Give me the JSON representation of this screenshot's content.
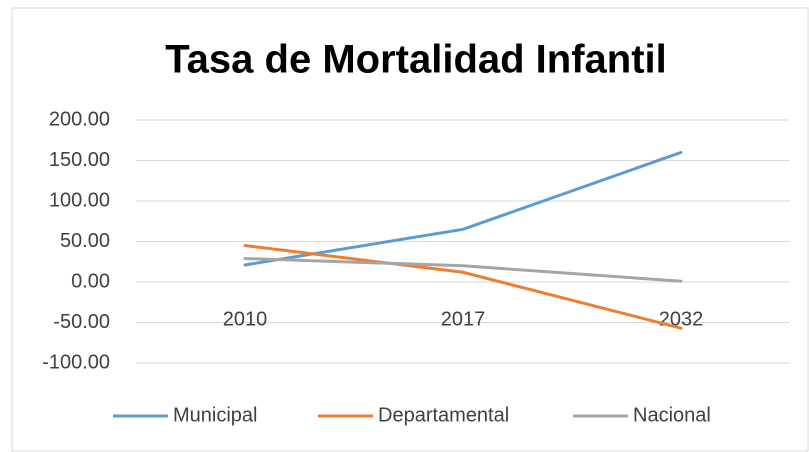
{
  "chart_data": {
    "type": "line",
    "title": "Tasa de Mortalidad Infantil",
    "categories": [
      "2010",
      "2017",
      "2032"
    ],
    "series": [
      {
        "name": "Municipal",
        "color": "#5b9bd5",
        "values": [
          21,
          65,
          160
        ]
      },
      {
        "name": "Departamental",
        "color": "#ed7d31",
        "values": [
          45,
          12,
          -57
        ]
      },
      {
        "name": "Nacional",
        "color": "#a5a5a5",
        "values": [
          29,
          20,
          1
        ]
      }
    ],
    "ylim": [
      -100,
      200
    ],
    "yticks": [
      {
        "value": -100,
        "label": "-100.00"
      },
      {
        "value": -50,
        "label": "-50.00"
      },
      {
        "value": 0,
        "label": "0.00"
      },
      {
        "value": 50,
        "label": "50.00"
      },
      {
        "value": 100,
        "label": "100.00"
      },
      {
        "value": 150,
        "label": "150.00"
      },
      {
        "value": 200,
        "label": "200.00"
      }
    ],
    "grid": true,
    "legend": "bottom"
  }
}
